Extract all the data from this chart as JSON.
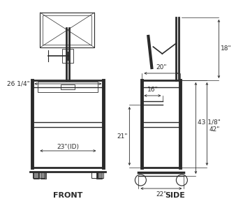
{
  "background_color": "#ffffff",
  "line_color": "#2a2a2a",
  "dim_color": "#2a2a2a",
  "title_front": "FRONT",
  "title_side": "SIDE",
  "title_fontsize": 8,
  "dim_fontsize": 6.5,
  "annotations": {
    "front_width": "26 1/4\"",
    "front_interior": "23\"(ID)",
    "side_top_width": "20\"",
    "side_monitor_height": "18\"",
    "side_shelf_width": "16\"",
    "side_lower_height": "21\"",
    "side_total_height1": "43 1/8\"",
    "side_total_height2": "42\"",
    "side_base_width": "22\""
  }
}
